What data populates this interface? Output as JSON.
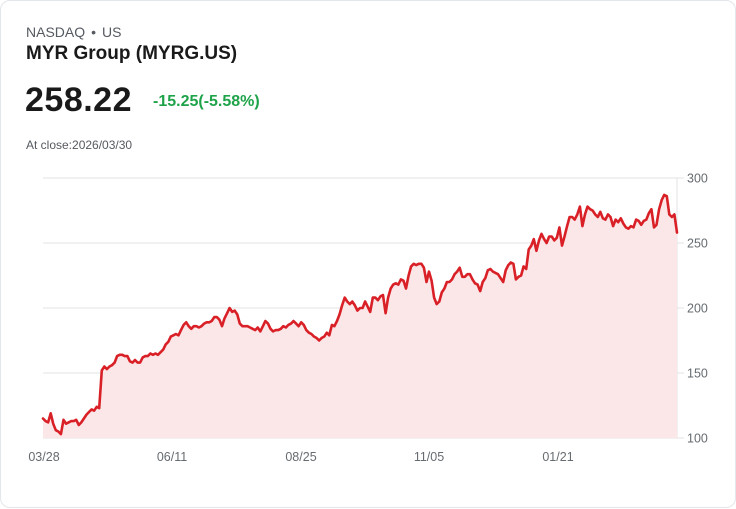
{
  "header": {
    "exchange": "NASDAQ",
    "separator": "•",
    "region": "US",
    "title": "MYR Group (MYRG.US)",
    "price": "258.22",
    "change": "-15.25(-5.58%)",
    "at_close": "At close:2026/03/30"
  },
  "colors": {
    "line": "#d92027",
    "fill": "#fbe7e8",
    "change_text": "#1fa34a",
    "grid": "#e3e3e3"
  },
  "chart_data": {
    "type": "area",
    "title": "MYR Group (MYRG.US)",
    "xlabel": "",
    "ylabel": "",
    "ylim": [
      100,
      300
    ],
    "yticks": [
      100,
      150,
      200,
      250,
      300
    ],
    "xticks": [
      "03/28",
      "06/11",
      "08/25",
      "11/05",
      "01/21"
    ],
    "grid": true,
    "series": [
      {
        "name": "MYRG.US",
        "values": [
          115,
          113,
          112,
          119,
          111,
          106,
          105,
          103,
          114,
          111,
          112,
          113,
          113,
          114,
          110,
          112,
          115,
          118,
          120,
          122,
          121,
          124,
          123,
          152,
          155,
          153,
          155,
          156,
          158,
          163,
          164,
          164,
          163,
          163,
          159,
          158,
          160,
          158,
          158,
          162,
          163,
          163,
          165,
          164,
          165,
          164,
          166,
          168,
          172,
          174,
          178,
          179,
          180,
          179,
          183,
          187,
          189,
          186,
          184,
          186,
          186,
          185,
          186,
          188,
          189,
          189,
          190,
          193,
          193,
          191,
          186,
          192,
          196,
          200,
          197,
          198,
          195,
          188,
          186,
          186,
          186,
          185,
          184,
          183,
          185,
          182,
          186,
          190,
          188,
          184,
          182,
          183,
          183,
          184,
          186,
          185,
          187,
          188,
          190,
          188,
          186,
          189,
          187,
          183,
          181,
          180,
          178,
          177,
          175,
          177,
          178,
          181,
          179,
          187,
          186,
          190,
          195,
          202,
          208,
          205,
          203,
          205,
          202,
          198,
          200,
          200,
          205,
          201,
          197,
          208,
          208,
          206,
          209,
          210,
          196,
          208,
          215,
          218,
          219,
          218,
          222,
          221,
          215,
          225,
          232,
          234,
          233,
          234,
          234,
          231,
          220,
          228,
          221,
          208,
          203,
          205,
          212,
          215,
          220,
          220,
          222,
          226,
          228,
          231,
          224,
          224,
          226,
          226,
          222,
          219,
          218,
          213,
          220,
          223,
          229,
          230,
          228,
          227,
          226,
          223,
          220,
          229,
          233,
          235,
          234,
          222,
          224,
          225,
          232,
          230,
          245,
          248,
          253,
          244,
          252,
          257,
          253,
          250,
          255,
          255,
          252,
          254,
          262,
          248,
          255,
          263,
          270,
          270,
          268,
          272,
          278,
          263,
          272,
          278,
          276,
          275,
          272,
          270,
          274,
          269,
          268,
          272,
          270,
          263,
          268,
          266,
          269,
          265,
          262,
          261,
          263,
          262,
          268,
          267,
          264,
          267,
          268,
          273,
          276,
          262,
          264,
          276,
          283,
          287,
          286,
          272,
          270,
          272,
          258
        ]
      }
    ]
  }
}
